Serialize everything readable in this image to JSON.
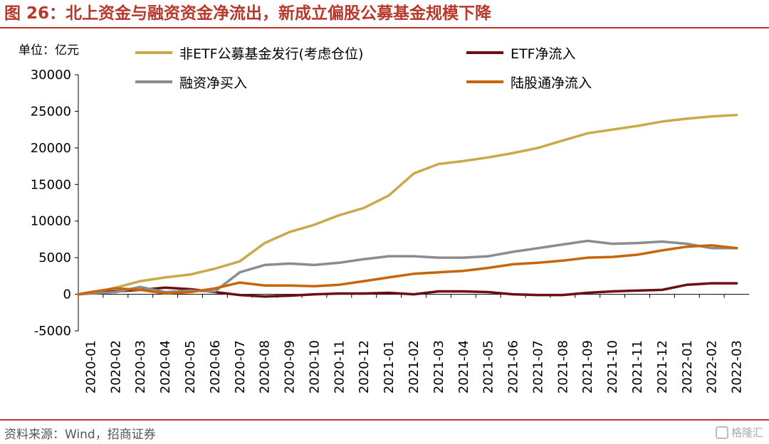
{
  "header": {
    "title": "图 26：北上资金与融资资金净流出，新成立偏股公募基金规模下降",
    "unit": "单位：亿元"
  },
  "footer": {
    "source": "资料来源：Wind，招商证券",
    "watermark": "格隆汇"
  },
  "colors": {
    "accent": "#b8392b",
    "gold": "#c9aa4b",
    "darkred": "#6b0f14",
    "gray": "#8c8c8c",
    "orange": "#c8650a"
  },
  "chart_data": {
    "type": "line",
    "title": "",
    "xlabel": "",
    "ylabel": "",
    "ylim": [
      -5000,
      30000
    ],
    "yticks": [
      -5000,
      0,
      5000,
      10000,
      15000,
      20000,
      25000,
      30000
    ],
    "ytick_labels": [
      "-5000",
      "0",
      "5000",
      "10000",
      "15000",
      "20000",
      "25000",
      "30000"
    ],
    "xtick_labels": [
      "2020-01",
      "2020-02",
      "2020-03",
      "2020-04",
      "2020-05",
      "2020-06",
      "2020-07",
      "2020-08",
      "2020-09",
      "2020-10",
      "2020-11",
      "2020-12",
      "2021-01",
      "2021-02",
      "2021-03",
      "2021-04",
      "2021-05",
      "2021-06",
      "2021-07",
      "2021-08",
      "2021-09",
      "2021-10",
      "2021-11",
      "2021-12",
      "2022-01",
      "2022-02",
      "2022-03"
    ],
    "grid": false,
    "legend_placement": "top",
    "series": [
      {
        "name": "非ETF公募基金发行(考虑仓位)",
        "color": "#c9aa4b",
        "x": [
          "2020-01",
          "2020-02",
          "2020-03",
          "2020-04",
          "2020-05",
          "2020-06",
          "2020-07",
          "2020-08",
          "2020-09",
          "2020-10",
          "2020-11",
          "2020-12",
          "2021-01",
          "2021-02",
          "2021-03",
          "2021-04",
          "2021-05",
          "2021-06",
          "2021-07",
          "2021-08",
          "2021-09",
          "2021-10",
          "2021-11",
          "2021-12",
          "2022-01",
          "2022-02",
          "2022-03"
        ],
        "values": [
          200,
          900,
          1800,
          2300,
          2700,
          3500,
          4500,
          7000,
          8500,
          9500,
          10800,
          11800,
          13500,
          16500,
          17800,
          18200,
          18700,
          19300,
          20000,
          21000,
          22000,
          22500,
          23000,
          23600,
          24000,
          24300,
          24500
        ]
      },
      {
        "name": "ETF净流入",
        "color": "#6b0f14",
        "x": [
          "2020-01",
          "2020-02",
          "2020-03",
          "2020-04",
          "2020-05",
          "2020-06",
          "2020-07",
          "2020-08",
          "2020-09",
          "2020-10",
          "2020-11",
          "2020-12",
          "2021-01",
          "2021-02",
          "2021-03",
          "2021-04",
          "2021-05",
          "2021-06",
          "2021-07",
          "2021-08",
          "2021-09",
          "2021-10",
          "2021-11",
          "2021-12",
          "2022-01",
          "2022-02",
          "2022-03"
        ],
        "values": [
          200,
          400,
          600,
          900,
          700,
          300,
          -100,
          -300,
          -200,
          0,
          100,
          100,
          200,
          0,
          400,
          400,
          300,
          0,
          -100,
          -100,
          200,
          400,
          500,
          600,
          1300,
          1500,
          1500
        ]
      },
      {
        "name": "融资净买入",
        "color": "#8c8c8c",
        "x": [
          "2020-01",
          "2020-02",
          "2020-03",
          "2020-04",
          "2020-05",
          "2020-06",
          "2020-07",
          "2020-08",
          "2020-09",
          "2020-10",
          "2020-11",
          "2020-12",
          "2021-01",
          "2021-02",
          "2021-03",
          "2021-04",
          "2021-05",
          "2021-06",
          "2021-07",
          "2021-08",
          "2021-09",
          "2021-10",
          "2021-11",
          "2021-12",
          "2022-01",
          "2022-02",
          "2022-03"
        ],
        "values": [
          100,
          300,
          1000,
          300,
          500,
          400,
          3000,
          4000,
          4200,
          4000,
          4300,
          4800,
          5200,
          5200,
          5000,
          5000,
          5200,
          5800,
          6300,
          6800,
          7300,
          6900,
          7000,
          7200,
          6900,
          6300,
          6300
        ]
      },
      {
        "name": "陆股通净流入",
        "color": "#c8650a",
        "x": [
          "2020-01",
          "2020-02",
          "2020-03",
          "2020-04",
          "2020-05",
          "2020-06",
          "2020-07",
          "2020-08",
          "2020-09",
          "2020-10",
          "2020-11",
          "2020-12",
          "2021-01",
          "2021-02",
          "2021-03",
          "2021-04",
          "2021-05",
          "2021-06",
          "2021-07",
          "2021-08",
          "2021-09",
          "2021-10",
          "2021-11",
          "2021-12",
          "2022-01",
          "2022-02",
          "2022-03"
        ],
        "values": [
          300,
          800,
          600,
          100,
          300,
          800,
          1600,
          1200,
          1200,
          1100,
          1300,
          1800,
          2300,
          2800,
          3000,
          3200,
          3600,
          4100,
          4300,
          4600,
          5000,
          5100,
          5400,
          6000,
          6500,
          6700,
          6300
        ]
      }
    ]
  }
}
